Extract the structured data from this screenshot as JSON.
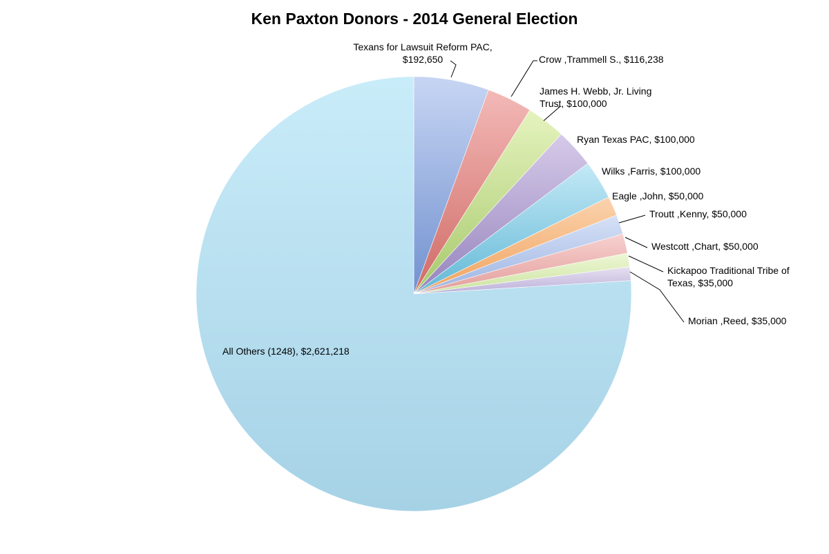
{
  "chart_data": {
    "type": "pie",
    "title": "Ken Paxton Donors - 2014 General Election",
    "slices": [
      {
        "name": "Texans for Lawsuit Reform PAC",
        "value": 192650,
        "label_lines": [
          "Texans for Lawsuit Reform PAC,",
          "$192,650"
        ],
        "color_a": "#c7d5f3",
        "color_b": "#7191cf"
      },
      {
        "name": "Crow ,Trammell S.",
        "value": 116238,
        "label_lines": [
          "Crow ,Trammell S.,  $116,238"
        ],
        "color_a": "#f3b9b7",
        "color_b": "#cf6b66"
      },
      {
        "name": "James H. Webb, Jr. Living Trust",
        "value": 100000,
        "label_lines": [
          "James H. Webb, Jr. Living",
          "Trust,  $100,000"
        ],
        "color_a": "#e5f3be",
        "color_b": "#a7c96c"
      },
      {
        "name": "Ryan Texas PAC",
        "value": 100000,
        "label_lines": [
          "Ryan Texas PAC,  $100,000"
        ],
        "color_a": "#d6cae9",
        "color_b": "#9584bd"
      },
      {
        "name": "Wilks ,Farris",
        "value": 100000,
        "label_lines": [
          "Wilks ,Farris,  $100,000"
        ],
        "color_a": "#c4e9f6",
        "color_b": "#62b8d6"
      },
      {
        "name": "Eagle ,John",
        "value": 50000,
        "label_lines": [
          "Eagle ,John,  $50,000"
        ],
        "color_a": "#fbd3ae",
        "color_b": "#f0a35e"
      },
      {
        "name": "Troutt ,Kenny",
        "value": 50000,
        "label_lines": [
          "Troutt ,Kenny,  $50,000"
        ],
        "color_a": "#d6e1f6",
        "color_b": "#9db4e2"
      },
      {
        "name": "Westcott ,Chart",
        "value": 50000,
        "label_lines": [
          "Westcott ,Chart,  $50,000"
        ],
        "color_a": "#f6d1d0",
        "color_b": "#e39e9b"
      },
      {
        "name": "Kickapoo Traditional Tribe of Texas",
        "value": 35000,
        "label_lines": [
          "Kickapoo Traditional Tribe of",
          "Texas,  $35,000"
        ],
        "color_a": "#eef7d6",
        "color_b": "#cbe39f"
      },
      {
        "name": "Morian ,Reed",
        "value": 35000,
        "label_lines": [
          "Morian ,Reed,  $35,000"
        ],
        "color_a": "#e6e0f1",
        "color_b": "#bcb0d9"
      },
      {
        "name": "All Others (1248)",
        "value": 2621218,
        "label_lines": [
          "All Others (1248),  $2,621,218"
        ],
        "color_a": "#c9ecf9",
        "color_b": "#a6d2e6"
      }
    ]
  }
}
